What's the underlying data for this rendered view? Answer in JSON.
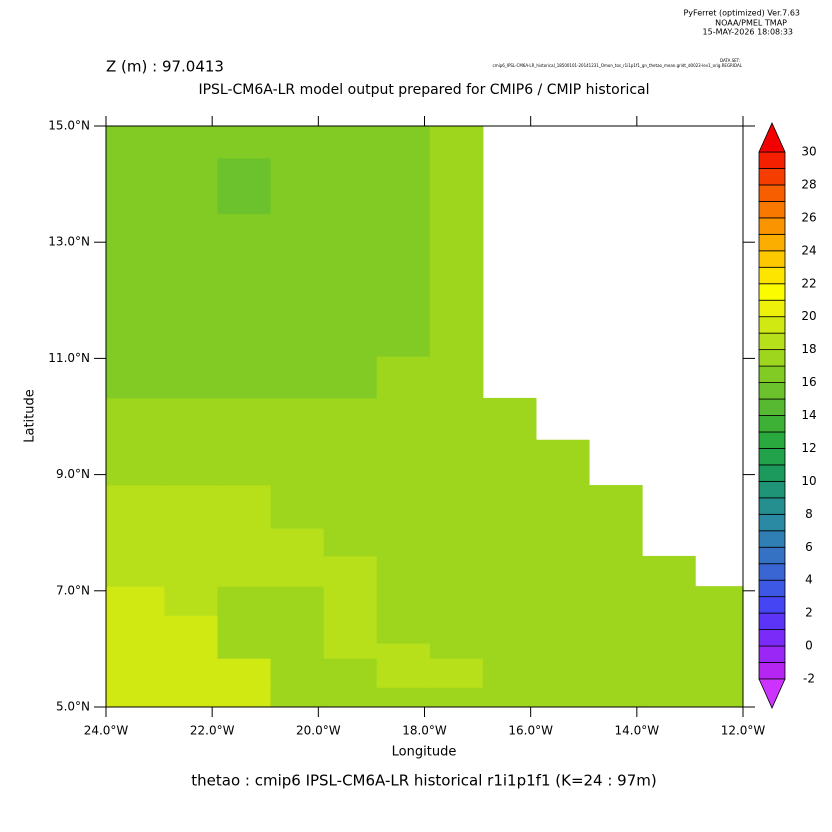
{
  "header": {
    "software": "PyFerret (optimized) Ver.7.63",
    "org": "NOAA/PMEL TMAP",
    "timestamp": "15-MAY-2026 18:08:33",
    "dataset_label": "DATA SET:",
    "dataset": "cmip6_IPSL-CM6A-LR_historical_18500101-20141231_Omon_tos_r1i1p1f1_gn_thetao_mean.gridt_d0023-lev1_orig.REGRIDAL"
  },
  "chart_data": {
    "type": "heatmap",
    "subtitle": "Z (m) : 97.0413",
    "title": "IPSL-CM6A-LR model output prepared for CMIP6 / CMIP historical",
    "caption": "thetao : cmip6 IPSL-CM6A-LR historical r1i1p1f1    (K=24 : 97m)",
    "x_label": "Longitude",
    "y_label": "Latitude",
    "xlim": [
      -24,
      -12
    ],
    "ylim": [
      5,
      15
    ],
    "xticks": [
      {
        "value": -24,
        "label": "24.0°W"
      },
      {
        "value": -22,
        "label": "22.0°W"
      },
      {
        "value": -20,
        "label": "20.0°W"
      },
      {
        "value": -18,
        "label": "18.0°W"
      },
      {
        "value": -16,
        "label": "16.0°W"
      },
      {
        "value": -14,
        "label": "14.0°W"
      },
      {
        "value": -12,
        "label": "12.0°W"
      }
    ],
    "yticks": [
      {
        "value": 5,
        "label": "5.0°N"
      },
      {
        "value": 7,
        "label": "7.0°N"
      },
      {
        "value": 9,
        "label": "9.0°N"
      },
      {
        "value": 11,
        "label": "11.0°N"
      },
      {
        "value": 13,
        "label": "13.0°N"
      },
      {
        "value": 15,
        "label": "15.0°N"
      }
    ],
    "x_edges": [
      -24,
      -22.9,
      -21.9,
      -20.9,
      -19.9,
      -18.9,
      -17.9,
      -16.9,
      -15.9,
      -14.9,
      -13.9,
      -12.9,
      -12
    ],
    "y_edges": [
      5,
      5.34,
      5.84,
      6.1,
      6.58,
      7.08,
      7.6,
      8.08,
      8.82,
      9.6,
      10.32,
      11.04,
      13.49,
      14.45,
      15
    ],
    "values": [
      [
        19.5,
        19.5,
        19.5,
        17.5,
        17.5,
        17.5,
        17.5,
        17.5,
        17.5,
        17.5,
        17.5,
        17.5
      ],
      [
        19.5,
        19.5,
        19.5,
        17.5,
        17.5,
        18.5,
        18.5,
        17.5,
        17.5,
        17.5,
        17.5,
        17.5
      ],
      [
        19.5,
        19.5,
        17.5,
        17.5,
        18.5,
        18.5,
        17.5,
        17.5,
        17.5,
        17.5,
        17.5,
        17.5
      ],
      [
        19.5,
        19.5,
        17.5,
        17.5,
        18.5,
        17.5,
        17.5,
        17.5,
        17.5,
        17.5,
        17.5,
        17.5
      ],
      [
        19.5,
        18.5,
        17.5,
        17.5,
        18.5,
        17.5,
        17.5,
        17.5,
        17.5,
        17.5,
        17.5,
        17.5
      ],
      [
        18.5,
        18.5,
        18.5,
        18.5,
        18.5,
        17.5,
        17.5,
        17.5,
        17.5,
        17.5,
        17.5,
        null
      ],
      [
        18.5,
        18.5,
        18.5,
        18.5,
        17.5,
        17.5,
        17.5,
        17.5,
        17.5,
        17.5,
        null,
        null
      ],
      [
        18.5,
        18.5,
        18.5,
        17.5,
        17.5,
        17.5,
        17.5,
        17.5,
        17.5,
        17.5,
        null,
        null
      ],
      [
        17.5,
        17.5,
        17.5,
        17.5,
        17.5,
        17.5,
        17.5,
        17.5,
        17.5,
        null,
        null,
        null
      ],
      [
        17.5,
        17.5,
        17.5,
        17.5,
        17.5,
        17.5,
        17.5,
        17.5,
        null,
        null,
        null,
        null
      ],
      [
        16.5,
        16.5,
        16.5,
        16.5,
        16.5,
        17.5,
        17.5,
        null,
        null,
        null,
        null,
        null
      ],
      [
        16.5,
        16.5,
        16.5,
        16.5,
        16.5,
        16.5,
        17.5,
        null,
        null,
        null,
        null,
        null
      ],
      [
        16.5,
        16.5,
        15.5,
        16.5,
        16.5,
        16.5,
        17.5,
        null,
        null,
        null,
        null,
        null
      ],
      [
        16.5,
        16.5,
        16.5,
        16.5,
        16.5,
        16.5,
        17.5,
        null,
        null,
        null,
        null,
        null
      ]
    ],
    "colorbar": {
      "levels": [
        -2,
        -1,
        0,
        1,
        2,
        3,
        4,
        5,
        6,
        7,
        8,
        9,
        10,
        11,
        12,
        13,
        14,
        15,
        16,
        17,
        18,
        19,
        20,
        21,
        22,
        23,
        24,
        25,
        26,
        27,
        28,
        29,
        30
      ],
      "colors": [
        "#b526f3",
        "#9a27f5",
        "#7a2bf7",
        "#5b34f8",
        "#4545f3",
        "#3d58e4",
        "#3a66d4",
        "#3672c4",
        "#2f7fb4",
        "#2a8aa3",
        "#258f90",
        "#1f9476",
        "#1c9a5e",
        "#22a24b",
        "#2aa93e",
        "#3cb135",
        "#56b931",
        "#6cc22d",
        "#82cb24",
        "#9dd61d",
        "#b8e01a",
        "#d0e913",
        "#eef20a",
        "#fcfc00",
        "#fde500",
        "#fdc800",
        "#fbae00",
        "#fa9400",
        "#f87800",
        "#f65e00",
        "#f53d00",
        "#f42000"
      ],
      "under_color": "#cc33ff",
      "over_color": "#f30000"
    }
  }
}
